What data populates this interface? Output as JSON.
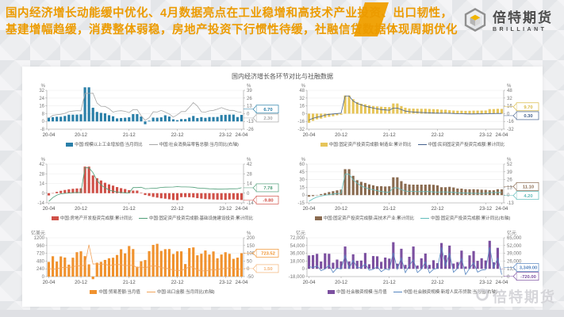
{
  "header": {
    "line1": "国内经济增长动能缓中优化、4月数据亮点在工业稳增和高技术产业投资、出口韧性，",
    "line2": "基建增幅趋缓，消费整体弱稳，房地产投资下行惯性待缓，社融信贷数据体现周期优化",
    "accent_color": "#f0a30a"
  },
  "logo": {
    "name_cn": "倍特期货",
    "name_en": "BRILLIANT",
    "icon": "hex-cube-icon",
    "accent_color": "#f0b400"
  },
  "panel": {
    "title": "国内经济增长各环节对比与社融数据"
  },
  "watermark": {
    "text": "倍特期货",
    "icon": "circle-badge-icon"
  },
  "chart_data": [
    {
      "name": "industrial-output-and-retail",
      "type": "bar+line",
      "unit_left": "%",
      "unit_right": "%",
      "left_ticks": [
        "32",
        "24",
        "16",
        "8",
        "0",
        "-8"
      ],
      "right_ticks": [
        "39",
        "26",
        "13",
        "0",
        "-13",
        "-26"
      ],
      "x_labels": [
        "20-04",
        "20-12",
        "21-12",
        "22-12",
        "23-12",
        "24-04"
      ],
      "x_index": [
        0,
        8,
        20,
        32,
        44,
        48
      ],
      "bar_series": {
        "label": "中国:规模以上工业增加值:当月同比",
        "color": "#2a7fa8",
        "axis": "left",
        "values": [
          3.9,
          4.4,
          4.8,
          4.8,
          5.6,
          6.9,
          6.9,
          7.0,
          7.3,
          35.1,
          35.1,
          14.1,
          9.8,
          8.8,
          8.3,
          6.4,
          5.3,
          3.1,
          3.5,
          3.8,
          4.3,
          7.5,
          7.5,
          5.0,
          -2.9,
          0.7,
          3.9,
          3.8,
          4.2,
          6.3,
          5.0,
          2.2,
          1.3,
          2.4,
          2.4,
          3.9,
          5.6,
          3.5,
          4.4,
          3.7,
          4.5,
          4.5,
          4.6,
          6.6,
          6.8,
          7.0,
          7.0,
          4.5,
          6.7
        ]
      },
      "line_series": {
        "label": "中国:社会消费品零售总额:当月同比(右轴)",
        "color": "#a8a8a8",
        "axis": "right",
        "values": [
          -7.5,
          -2.8,
          -1.8,
          -1.1,
          0.5,
          3.3,
          4.3,
          5.0,
          4.6,
          33.8,
          33.8,
          34.2,
          17.7,
          12.4,
          12.1,
          8.5,
          2.5,
          4.4,
          4.9,
          3.9,
          1.7,
          6.7,
          6.7,
          -3.5,
          -11.1,
          -6.7,
          3.1,
          2.7,
          5.4,
          2.5,
          -0.5,
          -5.9,
          -1.8,
          3.5,
          3.5,
          10.6,
          18.4,
          12.7,
          3.1,
          2.5,
          4.6,
          5.5,
          7.6,
          10.1,
          7.4,
          5.5,
          5.5,
          3.1,
          2.3
        ]
      },
      "callouts": [
        {
          "text": "6.70",
          "color": "#2a7fa8",
          "series": "bar"
        },
        {
          "text": "2.30",
          "color": "#a8a8a8",
          "series": "line"
        }
      ]
    },
    {
      "name": "fai-manufacturing-and-private",
      "type": "bar+line",
      "unit_left": "%",
      "unit_right": "%",
      "left_ticks": [
        "48",
        "32",
        "16",
        "0",
        "-16",
        "-32"
      ],
      "right_ticks": [
        "48",
        "32",
        "16",
        "0",
        "-16",
        "-32"
      ],
      "x_labels": [
        "20-04",
        "20-12",
        "21-12",
        "22-12",
        "23-12",
        "24-04"
      ],
      "x_index": [
        0,
        8,
        20,
        32,
        44,
        48
      ],
      "bar_series": {
        "label": "中国:固定资产投资完成额:制造业:累计同比",
        "color": "#e6c55a",
        "axis": "left",
        "values": [
          -18.8,
          -14.8,
          -11.7,
          -10.2,
          -8.1,
          -6.5,
          -5.3,
          -3.5,
          -2.2,
          37.3,
          37.3,
          29.8,
          23.8,
          20.4,
          19.2,
          17.3,
          15.7,
          14.8,
          14.2,
          13.7,
          13.5,
          20.9,
          20.9,
          15.6,
          12.2,
          10.6,
          10.4,
          10.1,
          10.0,
          10.1,
          9.7,
          9.3,
          9.1,
          8.1,
          8.1,
          7.0,
          6.4,
          6.0,
          6.0,
          5.7,
          5.9,
          6.2,
          6.2,
          6.3,
          6.5,
          9.4,
          9.4,
          9.9,
          9.7
        ]
      },
      "line_series": {
        "label": "中国:民间固定资产投资完成额:累计同比",
        "color": "#44608c",
        "axis": "left",
        "values": [
          -13.3,
          -9.6,
          -7.3,
          -5.7,
          -2.8,
          -1.5,
          -0.7,
          0.2,
          1.0,
          36.4,
          36.4,
          26.0,
          21.0,
          18.1,
          15.4,
          13.4,
          11.5,
          9.8,
          8.5,
          7.7,
          7.0,
          11.4,
          11.4,
          8.4,
          5.3,
          4.1,
          3.5,
          2.7,
          2.3,
          2.0,
          1.6,
          1.1,
          0.9,
          0.8,
          0.8,
          0.6,
          0.4,
          -0.1,
          -0.2,
          -0.5,
          -0.7,
          -0.6,
          -0.5,
          -0.5,
          -0.4,
          0.2,
          0.2,
          0.5,
          0.3
        ]
      },
      "callouts": [
        {
          "text": "9.70",
          "color": "#d9b944",
          "series": "bar"
        },
        {
          "text": "0.30",
          "color": "#44608c",
          "series": "line"
        }
      ]
    },
    {
      "name": "real-estate-and-infrastructure",
      "type": "bar+line",
      "unit_left": "%",
      "unit_right": "%",
      "left_ticks": [
        "42",
        "28",
        "14",
        "0",
        "-14"
      ],
      "right_ticks": [
        "42",
        "28",
        "14",
        "0",
        "-14"
      ],
      "x_labels": [
        "20-04",
        "20-12",
        "21-12",
        "22-12",
        "23-12",
        "24-04"
      ],
      "x_index": [
        0,
        8,
        20,
        32,
        44,
        48
      ],
      "bar_series": {
        "label": "中国:房地产开发投资完成额:累计同比",
        "color": "#d05048",
        "axis": "left",
        "values": [
          -3.3,
          -0.3,
          1.9,
          3.4,
          4.6,
          5.6,
          6.3,
          6.8,
          7.0,
          38.3,
          38.3,
          25.6,
          21.6,
          18.3,
          15.0,
          12.7,
          10.9,
          8.8,
          7.2,
          6.0,
          4.4,
          3.7,
          3.7,
          0.7,
          -2.7,
          -4.0,
          -5.4,
          -6.4,
          -7.4,
          -8.0,
          -8.8,
          -9.8,
          -10.0,
          -5.7,
          -5.7,
          -5.8,
          -6.2,
          -7.2,
          -7.9,
          -8.5,
          -8.8,
          -9.1,
          -9.3,
          -9.4,
          -9.6,
          -9.0,
          -9.0,
          -9.5,
          -9.8
        ]
      },
      "line_series": {
        "label": "中国:固定资产投资完成额:基础设施建设投资:累计同比",
        "color": "#4f9e78",
        "axis": "left",
        "values": [
          -11.8,
          -6.3,
          -2.7,
          -1.0,
          -0.3,
          0.2,
          0.7,
          1.0,
          0.9,
          36.6,
          36.6,
          29.7,
          18.4,
          11.8,
          7.8,
          4.6,
          2.9,
          1.5,
          1.0,
          0.5,
          0.4,
          8.1,
          8.1,
          8.5,
          6.5,
          6.7,
          7.1,
          7.4,
          8.3,
          8.6,
          8.7,
          8.9,
          9.4,
          9.0,
          9.0,
          8.8,
          8.5,
          7.5,
          7.2,
          6.8,
          6.4,
          6.2,
          5.8,
          5.8,
          5.9,
          6.3,
          6.3,
          6.5,
          7.78
        ]
      },
      "callouts": [
        {
          "text": "7.78",
          "color": "#4f9e78",
          "series": "line"
        },
        {
          "text": "-9.80",
          "color": "#d05048",
          "series": "bar"
        }
      ]
    },
    {
      "name": "hightech-and-total-fai",
      "type": "bar+line",
      "unit_left": "%",
      "unit_right": "%",
      "left_ticks": [
        "60",
        "45",
        "30",
        "15",
        "0",
        "-15"
      ],
      "right_ticks": [
        "52",
        "39",
        "26",
        "13",
        "0",
        "-13"
      ],
      "x_labels": [
        "20-04",
        "20-12",
        "21-12",
        "22-12",
        "23-12",
        "24-04"
      ],
      "x_index": [
        0,
        8,
        20,
        32,
        44,
        48
      ],
      "bar_series": {
        "label": "中国:固定资产投资完成额:高技术产业:累计同比",
        "color": "#8a6b50",
        "axis": "left",
        "values": [
          -3.0,
          -1.9,
          0.3,
          2.0,
          3.9,
          5.9,
          7.6,
          9.2,
          10.6,
          50.1,
          50.1,
          37.3,
          28.8,
          25.6,
          23.5,
          20.7,
          18.9,
          17.1,
          17.3,
          16.6,
          17.1,
          34.4,
          34.4,
          27.0,
          22.0,
          20.5,
          20.2,
          20.2,
          20.2,
          20.2,
          20.5,
          19.9,
          18.9,
          15.2,
          15.2,
          16.0,
          14.7,
          12.8,
          12.5,
          11.5,
          11.3,
          11.4,
          11.1,
          10.5,
          10.3,
          9.4,
          9.4,
          11.4,
          11.1
        ]
      },
      "line_series": {
        "label": "中国:固定资产投资完成额:累计同比(右轴)",
        "color": "#62bdbb",
        "axis": "right",
        "values": [
          -10.3,
          -6.3,
          -3.1,
          -1.6,
          -0.3,
          0.8,
          1.8,
          2.6,
          2.9,
          35.0,
          35.0,
          25.6,
          19.9,
          15.4,
          12.6,
          10.3,
          8.9,
          7.3,
          6.1,
          5.2,
          4.9,
          12.2,
          12.2,
          9.3,
          6.8,
          6.2,
          6.1,
          5.7,
          5.8,
          5.9,
          5.8,
          5.3,
          5.1,
          5.5,
          5.5,
          5.1,
          4.7,
          4.0,
          3.8,
          3.4,
          3.2,
          3.1,
          2.9,
          2.9,
          3.0,
          4.2,
          4.2,
          4.5,
          4.2
        ]
      },
      "callouts": [
        {
          "text": "11.10",
          "color": "#8a6b50",
          "series": "bar"
        },
        {
          "text": "4.20",
          "color": "#62bdbb",
          "series": "line"
        }
      ]
    },
    {
      "name": "trade-balance-and-exports",
      "type": "bar+line",
      "unit_left": "亿美元",
      "unit_right": "%",
      "left_ticks": [
        "1200",
        "960",
        "720",
        "480",
        "240",
        "0"
      ],
      "right_ticks": [
        "200",
        "150",
        "100",
        "50",
        "0",
        "-50"
      ],
      "x_labels": [
        "20-04",
        "20-12",
        "21-12",
        "22-12",
        "23-12",
        "24-04"
      ],
      "x_index": [
        0,
        8,
        20,
        32,
        44,
        48
      ],
      "bar_series": {
        "label": "中国:贸易差额:当月值",
        "color": "#f0922e",
        "axis": "left",
        "values": [
          453,
          629,
          464,
          623,
          589,
          370,
          584,
          754,
          781,
          632,
          378,
          -80,
          429,
          455,
          515,
          566,
          583,
          668,
          845,
          717,
          944,
          851,
          305,
          473,
          511,
          787,
          979,
          1013,
          793,
          847,
          852,
          698,
          780,
          780,
          388,
          881,
          902,
          658,
          706,
          806,
          682,
          777,
          565,
          683,
          753,
          703,
          548,
          585,
          723.5
        ]
      },
      "line_series": {
        "label": "中国:出口金额:当月同比(右轴)",
        "color": "#f2a45c",
        "axis": "right",
        "values": [
          3.4,
          -3.5,
          0.4,
          7.2,
          9.5,
          9.9,
          11.5,
          21.1,
          18.1,
          24.8,
          154.9,
          30.6,
          32.3,
          27.9,
          32.2,
          19.3,
          25.6,
          28.1,
          27.1,
          22.0,
          20.9,
          24.1,
          6.3,
          14.7,
          3.9,
          16.9,
          17.9,
          18.0,
          7.1,
          5.7,
          -0.3,
          -9.0,
          -10.1,
          -10.5,
          -1.3,
          14.8,
          8.5,
          -7.5,
          -12.4,
          -14.5,
          -8.8,
          -6.2,
          -6.4,
          0.5,
          2.3,
          8.2,
          5.6,
          -7.5,
          1.5
        ]
      },
      "callouts": [
        {
          "text": "723.52",
          "color": "#f0922e",
          "series": "bar"
        },
        {
          "text": "1.50",
          "color": "#f4b579",
          "series": "line"
        }
      ]
    },
    {
      "name": "social-financing-and-new-loans",
      "type": "bar+line",
      "unit_left": "亿元",
      "unit_right": "亿元",
      "left_ticks": [
        "72,000",
        "54,000",
        "36,000",
        "18,000",
        "0",
        "-18,000"
      ],
      "right_ticks": [
        "65,000",
        "52,000",
        "39,000",
        "26,000",
        "13,000",
        "0"
      ],
      "x_labels": [
        "20-04",
        "20-12",
        "21-12",
        "22-12",
        "23-12",
        "24-04"
      ],
      "x_index": [
        0,
        8,
        20,
        32,
        44,
        48
      ],
      "bar_series": {
        "label": "中国:社会融资规模:当月值",
        "color": "#7c50a0",
        "axis": "left",
        "values": [
          31000,
          31900,
          34700,
          16900,
          35800,
          34800,
          14200,
          21400,
          17200,
          51700,
          17100,
          33700,
          18500,
          19200,
          36700,
          10600,
          29600,
          29000,
          16200,
          26100,
          23700,
          61700,
          11900,
          46500,
          9102,
          27900,
          51700,
          7561,
          24300,
          35300,
          9079,
          19900,
          13100,
          59800,
          31600,
          53800,
          12200,
          15600,
          42200,
          5282,
          31200,
          41200,
          18500,
          24500,
          19400,
          65000,
          15200,
          48700,
          -720
        ]
      },
      "line_series": {
        "label": "中国:社会融资规模:新增人民币贷款:当月值(右轴)",
        "color": "#5585c0",
        "axis": "right",
        "values": [
          17000,
          14800,
          18100,
          9927,
          12800,
          19000,
          6898,
          14300,
          12600,
          35800,
          13600,
          27300,
          14700,
          15000,
          21200,
          10800,
          12200,
          16600,
          8262,
          12700,
          11300,
          39800,
          12300,
          31300,
          6454,
          18900,
          28100,
          6790,
          12500,
          24700,
          6152,
          12100,
          14000,
          49000,
          18100,
          38900,
          7188,
          13600,
          30500,
          3459,
          13600,
          23100,
          7384,
          10900,
          11700,
          49200,
          14500,
          30900,
          3349
        ]
      },
      "callouts": [
        {
          "text": "3,349.00",
          "color": "#5585c0",
          "series": "line"
        },
        {
          "text": "-720.00",
          "color": "#7c50a0",
          "series": "bar"
        }
      ]
    }
  ]
}
